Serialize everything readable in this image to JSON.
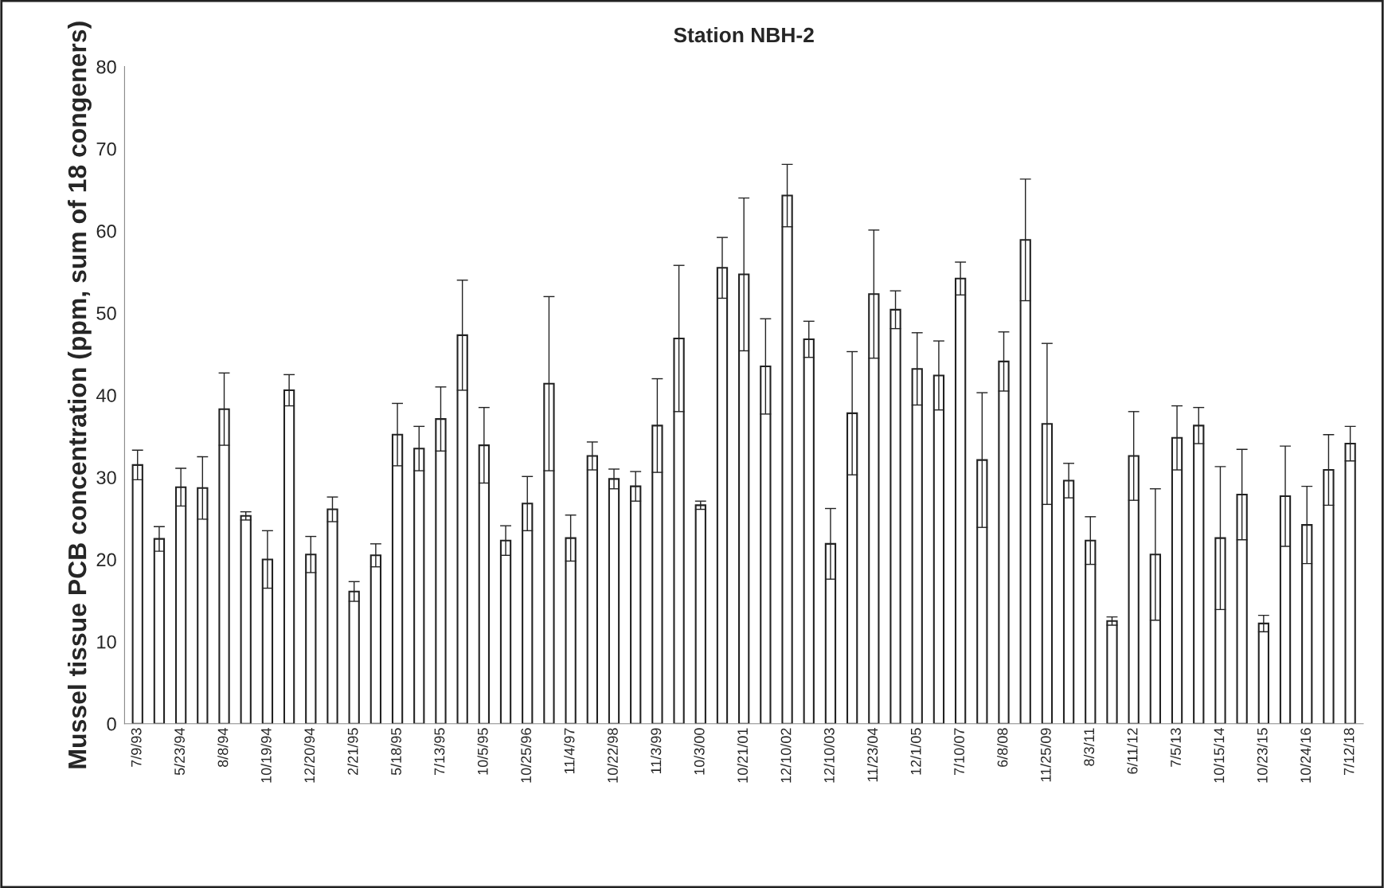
{
  "chart_data": {
    "type": "bar",
    "title": "Station NBH-2",
    "ylabel": "Mussel tissue PCB concentration (ppm, sum of 18 congeners)",
    "categories": [
      "7/9/93",
      null,
      "5/23/94",
      null,
      "8/8/94",
      null,
      "10/19/94",
      null,
      "12/20/94",
      null,
      "2/21/95",
      null,
      "5/18/95",
      null,
      "7/13/95",
      null,
      "10/5/95",
      null,
      "10/25/96",
      null,
      "11/4/97",
      null,
      "10/22/98",
      null,
      "11/3/99",
      null,
      "10/3/00",
      null,
      "10/21/01",
      null,
      "12/10/02",
      null,
      "12/10/03",
      null,
      "11/23/04",
      null,
      "12/1/05",
      null,
      "7/10/07",
      null,
      "6/8/08",
      null,
      "11/25/09",
      null,
      "8/3/11",
      null,
      "6/11/12",
      null,
      "7/5/13",
      null,
      "10/15/14",
      null,
      "10/23/15",
      null,
      "10/24/16",
      null,
      "7/12/18"
    ],
    "values": [
      31.5,
      22.5,
      28.8,
      28.7,
      38.3,
      25.3,
      20,
      40.6,
      20.6,
      26.1,
      16.1,
      20.5,
      35.2,
      33.5,
      37.1,
      47.3,
      33.9,
      22.3,
      26.8,
      41.4,
      22.6,
      32.6,
      29.8,
      28.9,
      36.3,
      46.9,
      26.6,
      55.5,
      54.7,
      43.5,
      64.3,
      46.8,
      21.9,
      37.8,
      52.3,
      50.4,
      43.2,
      42.4,
      54.2,
      32.1,
      44.1,
      58.9,
      36.5,
      29.6,
      22.3,
      12.5,
      32.6,
      20.6,
      34.8,
      36.3,
      22.6,
      27.9,
      12.2,
      27.7,
      24.2,
      30.9,
      34.1
    ],
    "errors": [
      1.8,
      1.5,
      2.3,
      3.8,
      4.4,
      0.5,
      3.5,
      1.9,
      2.2,
      1.5,
      1.2,
      1.4,
      3.8,
      2.7,
      3.9,
      6.7,
      4.6,
      1.8,
      3.3,
      10.6,
      2.8,
      1.7,
      1.2,
      1.8,
      5.7,
      8.9,
      0.5,
      3.7,
      9.3,
      5.8,
      3.8,
      2.2,
      4.3,
      7.5,
      7.8,
      2.3,
      4.4,
      4.2,
      2,
      8.2,
      3.6,
      7.4,
      9.8,
      2.1,
      2.9,
      0.5,
      5.4,
      8,
      3.9,
      2.2,
      8.7,
      5.5,
      1,
      6.1,
      4.7,
      4.3,
      2.1
    ],
    "color": "#ffffff",
    "ylim": [
      0,
      80
    ],
    "yticks": [
      0,
      10,
      20,
      30,
      40,
      50,
      60,
      70,
      80
    ]
  }
}
